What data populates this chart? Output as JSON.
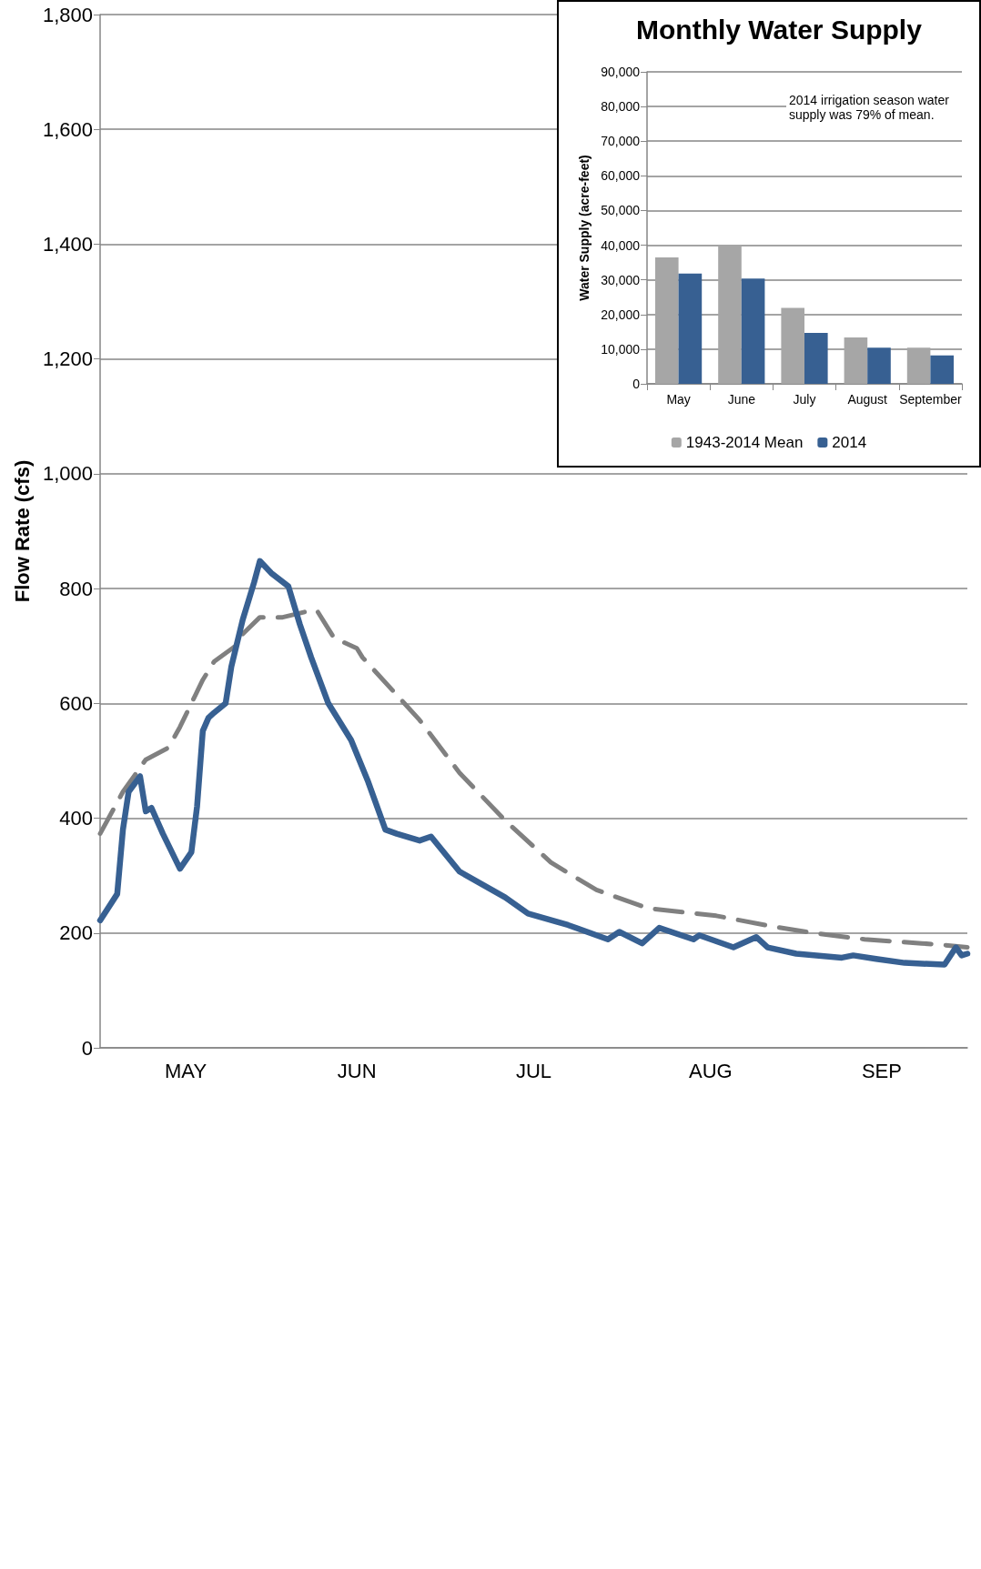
{
  "chart_data": [
    {
      "type": "line",
      "ylabel": "Flow Rate (cfs)",
      "xlim": [
        "--05-01",
        "--09-30"
      ],
      "xticks": [
        {
          "value": "--05-16",
          "label": "MAY"
        },
        {
          "value": "--06-15",
          "label": "JUN"
        },
        {
          "value": "--07-16",
          "label": "JUL"
        },
        {
          "value": "--08-16",
          "label": "AUG"
        },
        {
          "value": "--09-15",
          "label": "SEP"
        }
      ],
      "ylim": [
        0,
        1800
      ],
      "yticks": [
        0,
        200,
        400,
        600,
        800,
        {
          "value": 1000,
          "label": "1,000"
        },
        {
          "value": 1200,
          "label": "1,200"
        },
        {
          "value": 1400,
          "label": "1,400"
        },
        {
          "value": 1600,
          "label": "1,600"
        },
        {
          "value": 1800,
          "label": "1,800"
        }
      ],
      "grid": "y",
      "legend": false,
      "series": [
        {
          "color": "#808080",
          "line_style": "dashed",
          "x": [
            "--05-01",
            "--05-05",
            "--05-09",
            "--05-13",
            "--05-15",
            "--05-19",
            "--05-21",
            "--05-25",
            "--05-26",
            "--05-29",
            "--06-02",
            "--06-07",
            "--06-08",
            "--06-11",
            "--06-15",
            "--06-16",
            "--06-26",
            "--07-03",
            "--07-11",
            "--07-19",
            "--07-27",
            "--08-05",
            "--08-17",
            "--08-26",
            "--09-03",
            "--09-12",
            "--09-22",
            "--09-26",
            "--09-30"
          ],
          "values": [
            373,
            446,
            502,
            523,
            559,
            641,
            673,
            702,
            721,
            750,
            750,
            762,
            762,
            714,
            696,
            680,
            571,
            479,
            396,
            323,
            275,
            243,
            230,
            213,
            200,
            189,
            182,
            179,
            175
          ]
        },
        {
          "color": "#376092",
          "line_style": "solid",
          "x": [
            "--05-01",
            "--05-04",
            "--05-05",
            "--05-06",
            "--05-08",
            "--05-09",
            "--05-10",
            "--05-12",
            "--05-15",
            "--05-17",
            "--05-18",
            "--05-19",
            "--05-20",
            "--05-21",
            "--05-23",
            "--05-24",
            "--05-26",
            "--05-28",
            "--05-29",
            "--05-31",
            "--06-03",
            "--06-05",
            "--06-07",
            "--06-10",
            "--06-14",
            "--06-17",
            "--06-20",
            "--06-22",
            "--06-26",
            "--06-28",
            "--07-03",
            "--07-11",
            "--07-15",
            "--07-22",
            "--07-29",
            "--07-31",
            "--08-04",
            "--08-07",
            "--08-13",
            "--08-14",
            "--08-20",
            "--08-24",
            "--08-26",
            "--08-31",
            "--09-08",
            "--09-10",
            "--09-14",
            "--09-19",
            "--09-26",
            "--09-28",
            "--09-29",
            "--09-30"
          ],
          "values": [
            222,
            268,
            380,
            446,
            473,
            412,
            418,
            373,
            312,
            341,
            421,
            552,
            575,
            584,
            600,
            664,
            746,
            811,
            848,
            827,
            804,
            738,
            680,
            600,
            536,
            463,
            380,
            373,
            361,
            368,
            307,
            262,
            234,
            214,
            189,
            202,
            182,
            209,
            189,
            196,
            175,
            193,
            175,
            164,
            157,
            161,
            155,
            148,
            145,
            175,
            161,
            164
          ]
        }
      ]
    },
    {
      "type": "bar",
      "title": "Monthly Water Supply",
      "ylabel": "Water Supply (acre-feet)",
      "categories": [
        "May",
        "June",
        "July",
        "August",
        "September"
      ],
      "ylim": [
        0,
        90000
      ],
      "yticks": [
        0,
        {
          "value": 10000,
          "label": "10,000"
        },
        {
          "value": 20000,
          "label": "20,000"
        },
        {
          "value": 30000,
          "label": "30,000"
        },
        {
          "value": 40000,
          "label": "40,000"
        },
        {
          "value": 50000,
          "label": "50,000"
        },
        {
          "value": 60000,
          "label": "60,000"
        },
        {
          "value": 70000,
          "label": "70,000"
        },
        {
          "value": 80000,
          "label": "80,000"
        },
        {
          "value": 90000,
          "label": "90,000"
        }
      ],
      "grid": "y",
      "legend": "bottom",
      "annotations": [
        "2014 irrigation season water supply was 79% of mean."
      ],
      "series": [
        {
          "name": "1943-2014 Mean",
          "color": "#a6a6a6",
          "values": [
            36500,
            39900,
            21900,
            13400,
            10400
          ]
        },
        {
          "name": "2014",
          "color": "#376092",
          "values": [
            31800,
            30400,
            14700,
            10400,
            8200
          ]
        }
      ]
    }
  ]
}
